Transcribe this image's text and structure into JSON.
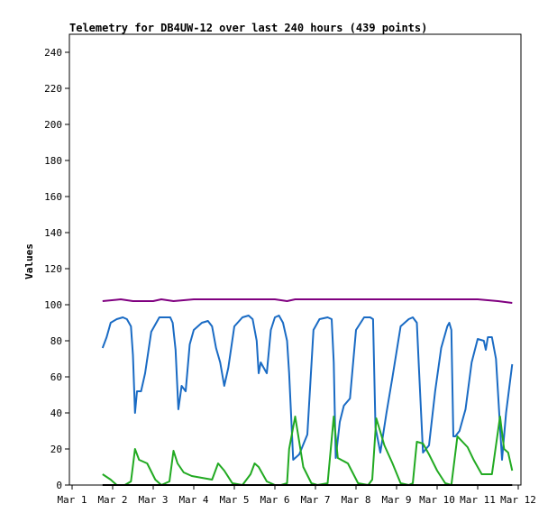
{
  "chart_data": {
    "type": "line",
    "title": "Telemetry for DB4UW-12 over last 240 hours (439 points)",
    "xlabel": "",
    "ylabel": "Values",
    "x_ticks": [
      "Mar 1",
      "Mar 2",
      "Mar 3",
      "Mar 4",
      "Mar 5",
      "Mar 6",
      "Mar 7",
      "Mar 8",
      "Mar 9",
      "Mar 10",
      "Mar 11",
      "Mar 12"
    ],
    "xlim": [
      1,
      12
    ],
    "ylim": [
      0,
      250
    ],
    "y_ticks": [
      0,
      20,
      40,
      60,
      80,
      100,
      120,
      140,
      160,
      180,
      200,
      220,
      240
    ],
    "grid": false,
    "legend": "none",
    "series": [
      {
        "color": "#800080",
        "x": [
          1.75,
          2.2,
          2.5,
          3.0,
          3.2,
          3.5,
          4.0,
          4.5,
          5.0,
          5.5,
          6.0,
          6.3,
          6.5,
          7.0,
          7.5,
          8.0,
          8.5,
          9.0,
          9.5,
          10.0,
          10.5,
          11.0,
          11.5,
          11.85
        ],
        "y": [
          102,
          103,
          102,
          102,
          103,
          102,
          103,
          103,
          103,
          103,
          103,
          102,
          103,
          103,
          103,
          103,
          103,
          103,
          103,
          103,
          103,
          103,
          102,
          101
        ]
      },
      {
        "color": "#1a6bc4",
        "x": [
          1.75,
          1.85,
          1.95,
          2.1,
          2.25,
          2.35,
          2.45,
          2.5,
          2.55,
          2.6,
          2.7,
          2.8,
          2.95,
          3.15,
          3.3,
          3.42,
          3.48,
          3.55,
          3.62,
          3.7,
          3.8,
          3.9,
          4.0,
          4.2,
          4.35,
          4.45,
          4.55,
          4.65,
          4.75,
          4.85,
          5.0,
          5.2,
          5.35,
          5.45,
          5.55,
          5.6,
          5.65,
          5.7,
          5.8,
          5.9,
          6.0,
          6.1,
          6.2,
          6.3,
          6.35,
          6.45,
          6.6,
          6.8,
          6.95,
          7.1,
          7.3,
          7.4,
          7.45,
          7.5,
          7.6,
          7.7,
          7.85,
          8.0,
          8.2,
          8.35,
          8.42,
          8.48,
          8.6,
          8.75,
          8.9,
          9.1,
          9.3,
          9.4,
          9.5,
          9.55,
          9.65,
          9.8,
          9.95,
          10.1,
          10.25,
          10.3,
          10.35,
          10.4,
          10.45,
          10.55,
          10.7,
          10.85,
          11.0,
          11.15,
          11.2,
          11.25,
          11.35,
          11.45,
          11.6,
          11.7,
          11.85
        ],
        "y": [
          76,
          82,
          90,
          92,
          93,
          92,
          88,
          72,
          40,
          52,
          52,
          62,
          85,
          93,
          93,
          93,
          90,
          75,
          42,
          55,
          52,
          78,
          86,
          90,
          91,
          88,
          76,
          68,
          55,
          65,
          88,
          93,
          94,
          92,
          80,
          62,
          68,
          66,
          62,
          86,
          93,
          94,
          90,
          80,
          62,
          14,
          17,
          28,
          86,
          92,
          93,
          92,
          68,
          15,
          35,
          44,
          48,
          86,
          93,
          93,
          92,
          32,
          18,
          40,
          60,
          88,
          92,
          93,
          90,
          65,
          18,
          22,
          52,
          76,
          88,
          90,
          86,
          27,
          27,
          30,
          42,
          68,
          81,
          80,
          75,
          82,
          82,
          70,
          14,
          40,
          67
        ]
      },
      {
        "color": "#22aa22",
        "x": [
          1.75,
          1.95,
          2.1,
          2.3,
          2.45,
          2.55,
          2.65,
          2.85,
          3.05,
          3.2,
          3.4,
          3.5,
          3.6,
          3.75,
          3.95,
          4.2,
          4.45,
          4.6,
          4.75,
          4.95,
          5.2,
          5.4,
          5.5,
          5.6,
          5.8,
          6.0,
          6.15,
          6.3,
          6.35,
          6.5,
          6.7,
          6.9,
          7.05,
          7.3,
          7.45,
          7.55,
          7.8,
          8.05,
          8.3,
          8.4,
          8.5,
          8.7,
          8.9,
          9.1,
          9.3,
          9.4,
          9.5,
          9.65,
          9.8,
          10.0,
          10.2,
          10.35,
          10.5,
          10.75,
          10.9,
          11.1,
          11.35,
          11.55,
          11.65,
          11.75,
          11.85
        ],
        "y": [
          6,
          3,
          0,
          0,
          2,
          20,
          14,
          12,
          3,
          0,
          2,
          19,
          12,
          7,
          5,
          4,
          3,
          12,
          8,
          1,
          0,
          6,
          12,
          10,
          2,
          0,
          0,
          1,
          20,
          38,
          10,
          1,
          0,
          1,
          38,
          15,
          12,
          1,
          0,
          3,
          37,
          22,
          12,
          1,
          0,
          1,
          24,
          23,
          17,
          8,
          1,
          0,
          27,
          21,
          14,
          6,
          6,
          38,
          20,
          18,
          8
        ]
      },
      {
        "color": "#000000",
        "x": [
          1.75,
          11.85
        ],
        "y": [
          0,
          0
        ]
      }
    ]
  }
}
